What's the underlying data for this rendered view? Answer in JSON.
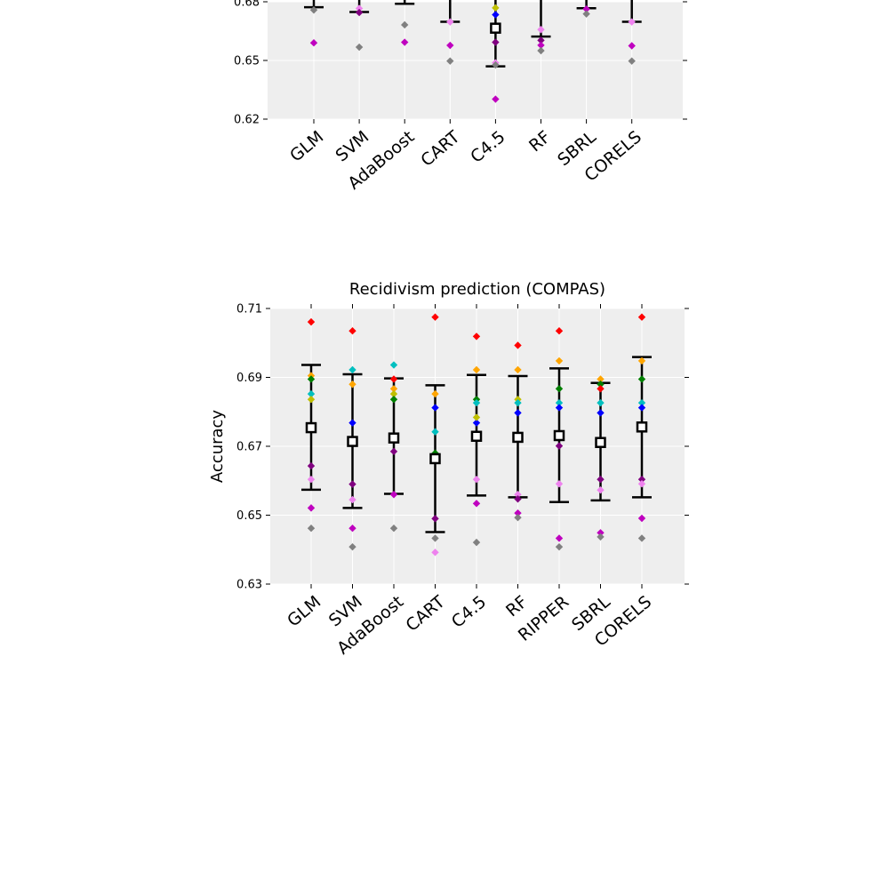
{
  "chart_data": [
    {
      "type": "scatter",
      "title": "",
      "ylabel": "",
      "ylim": [
        0.62,
        0.68
      ],
      "yticks": [
        "0.62",
        "0.65",
        "0.68"
      ],
      "categories": [
        "GLM",
        "SVM",
        "AdaBoost",
        "CART",
        "C4.5",
        "RF",
        "SBRL",
        "CORELS"
      ],
      "grid": true,
      "points": [
        {
          "cat": 0,
          "y": 0.6758,
          "color": "#808080"
        },
        {
          "cat": 0,
          "y": 0.659,
          "color": "#bf00bf"
        },
        {
          "cat": 1,
          "y": 0.6766,
          "color": "#ee82ee"
        },
        {
          "cat": 1,
          "y": 0.6745,
          "color": "#800080"
        },
        {
          "cat": 1,
          "y": 0.6568,
          "color": "#808080"
        },
        {
          "cat": 2,
          "y": 0.6682,
          "color": "#808080"
        },
        {
          "cat": 2,
          "y": 0.6593,
          "color": "#bf00bf"
        },
        {
          "cat": 3,
          "y": 0.6697,
          "color": "#ee82ee"
        },
        {
          "cat": 3,
          "y": 0.6577,
          "color": "#bf00bf"
        },
        {
          "cat": 3,
          "y": 0.6497,
          "color": "#808080"
        },
        {
          "cat": 4,
          "y": 0.6769,
          "color": "#bfbf00"
        },
        {
          "cat": 4,
          "y": 0.6734,
          "color": "#0000ff"
        },
        {
          "cat": 4,
          "y": 0.6593,
          "color": "#800080"
        },
        {
          "cat": 4,
          "y": 0.6488,
          "color": "#ee82ee"
        },
        {
          "cat": 4,
          "y": 0.6477,
          "color": "#808080"
        },
        {
          "cat": 4,
          "y": 0.6302,
          "color": "#bf00bf"
        },
        {
          "cat": 5,
          "y": 0.6658,
          "color": "#ee82ee"
        },
        {
          "cat": 5,
          "y": 0.6603,
          "color": "#800080"
        },
        {
          "cat": 5,
          "y": 0.6578,
          "color": "#bf00bf"
        },
        {
          "cat": 5,
          "y": 0.655,
          "color": "#808080"
        },
        {
          "cat": 6,
          "y": 0.6763,
          "color": "#bf00bf"
        },
        {
          "cat": 6,
          "y": 0.6738,
          "color": "#808080"
        },
        {
          "cat": 7,
          "y": 0.6697,
          "color": "#ee82ee"
        },
        {
          "cat": 7,
          "y": 0.6575,
          "color": "#bf00bf"
        },
        {
          "cat": 7,
          "y": 0.6497,
          "color": "#808080"
        }
      ],
      "means": [
        {
          "cat": 4,
          "y": 0.6665
        }
      ],
      "whiskers": [
        {
          "cat": 0,
          "lo": null,
          "hi": 0.6772
        },
        {
          "cat": 1,
          "lo": null,
          "hi": 0.6748
        },
        {
          "cat": 2,
          "lo": null,
          "hi": 0.679
        },
        {
          "cat": 3,
          "lo": null,
          "hi": 0.6698
        },
        {
          "cat": 4,
          "lo": 0.647,
          "hi": null
        },
        {
          "cat": 5,
          "lo": 0.6622,
          "hi": null
        },
        {
          "cat": 6,
          "lo": null,
          "hi": 0.6767
        },
        {
          "cat": 7,
          "lo": null,
          "hi": 0.6698
        }
      ]
    },
    {
      "type": "scatter",
      "title": "Recidivism prediction (COMPAS)",
      "ylabel": "Accuracy",
      "ylim": [
        0.63,
        0.71
      ],
      "yticks": [
        "0.63",
        "0.65",
        "0.67",
        "0.69",
        "0.71"
      ],
      "categories": [
        "GLM",
        "SVM",
        "AdaBoost",
        "CART",
        "C4.5",
        "RF",
        "RIPPER",
        "SBRL",
        "CORELS"
      ],
      "grid": true,
      "means": [
        {
          "cat": 0,
          "y": 0.6754
        },
        {
          "cat": 1,
          "y": 0.6714
        },
        {
          "cat": 2,
          "y": 0.6724
        },
        {
          "cat": 3,
          "y": 0.6664
        },
        {
          "cat": 4,
          "y": 0.6729
        },
        {
          "cat": 5,
          "y": 0.6726
        },
        {
          "cat": 6,
          "y": 0.6731
        },
        {
          "cat": 7,
          "y": 0.6711
        },
        {
          "cat": 8,
          "y": 0.6756
        }
      ],
      "whiskers": [
        {
          "cat": 0,
          "lo": 0.6574,
          "hi": 0.6936
        },
        {
          "cat": 1,
          "lo": 0.6521,
          "hi": 0.6909
        },
        {
          "cat": 2,
          "lo": 0.6562,
          "hi": 0.6897
        },
        {
          "cat": 3,
          "lo": 0.6451,
          "hi": 0.6877
        },
        {
          "cat": 4,
          "lo": 0.6557,
          "hi": 0.6907
        },
        {
          "cat": 5,
          "lo": 0.6552,
          "hi": 0.6904
        },
        {
          "cat": 6,
          "lo": 0.6538,
          "hi": 0.6926
        },
        {
          "cat": 7,
          "lo": 0.6543,
          "hi": 0.6884
        },
        {
          "cat": 8,
          "lo": 0.6552,
          "hi": 0.6959
        }
      ],
      "points": [
        {
          "cat": 0,
          "y": 0.7061,
          "color": "#ff0000"
        },
        {
          "cat": 0,
          "y": 0.6905,
          "color": "#ffa500"
        },
        {
          "cat": 0,
          "y": 0.6895,
          "color": "#008000"
        },
        {
          "cat": 0,
          "y": 0.6852,
          "color": "#00bfbf"
        },
        {
          "cat": 0,
          "y": 0.6836,
          "color": "#bfbf00"
        },
        {
          "cat": 0,
          "y": 0.6643,
          "color": "#800080"
        },
        {
          "cat": 0,
          "y": 0.6604,
          "color": "#ee82ee"
        },
        {
          "cat": 0,
          "y": 0.6521,
          "color": "#bf00bf"
        },
        {
          "cat": 0,
          "y": 0.6462,
          "color": "#808080"
        },
        {
          "cat": 1,
          "y": 0.7035,
          "color": "#ff0000"
        },
        {
          "cat": 1,
          "y": 0.6922,
          "color": "#00bfbf"
        },
        {
          "cat": 1,
          "y": 0.688,
          "color": "#ffa500"
        },
        {
          "cat": 1,
          "y": 0.6768,
          "color": "#0000ff"
        },
        {
          "cat": 1,
          "y": 0.659,
          "color": "#800080"
        },
        {
          "cat": 1,
          "y": 0.6545,
          "color": "#ee82ee"
        },
        {
          "cat": 1,
          "y": 0.6462,
          "color": "#bf00bf"
        },
        {
          "cat": 1,
          "y": 0.6408,
          "color": "#808080"
        },
        {
          "cat": 2,
          "y": 0.6936,
          "color": "#00bfbf"
        },
        {
          "cat": 2,
          "y": 0.6895,
          "color": "#ff0000"
        },
        {
          "cat": 2,
          "y": 0.6867,
          "color": "#ffa500"
        },
        {
          "cat": 2,
          "y": 0.6852,
          "color": "#bfbf00"
        },
        {
          "cat": 2,
          "y": 0.6836,
          "color": "#008000"
        },
        {
          "cat": 2,
          "y": 0.6685,
          "color": "#800080"
        },
        {
          "cat": 2,
          "y": 0.656,
          "color": "#bf00bf"
        },
        {
          "cat": 2,
          "y": 0.6462,
          "color": "#808080"
        },
        {
          "cat": 3,
          "y": 0.7075,
          "color": "#ff0000"
        },
        {
          "cat": 3,
          "y": 0.6852,
          "color": "#ffa500"
        },
        {
          "cat": 3,
          "y": 0.6812,
          "color": "#0000ff"
        },
        {
          "cat": 3,
          "y": 0.6742,
          "color": "#00bfbf"
        },
        {
          "cat": 3,
          "y": 0.668,
          "color": "#008000"
        },
        {
          "cat": 3,
          "y": 0.649,
          "color": "#800080"
        },
        {
          "cat": 3,
          "y": 0.6433,
          "color": "#808080"
        },
        {
          "cat": 3,
          "y": 0.6392,
          "color": "#ee82ee"
        },
        {
          "cat": 4,
          "y": 0.7019,
          "color": "#ff0000"
        },
        {
          "cat": 4,
          "y": 0.6922,
          "color": "#ffa500"
        },
        {
          "cat": 4,
          "y": 0.6836,
          "color": "#008000"
        },
        {
          "cat": 4,
          "y": 0.6826,
          "color": "#00bfbf"
        },
        {
          "cat": 4,
          "y": 0.6768,
          "color": "#0000ff"
        },
        {
          "cat": 4,
          "y": 0.6784,
          "color": "#bfbf00"
        },
        {
          "cat": 4,
          "y": 0.6604,
          "color": "#ee82ee"
        },
        {
          "cat": 4,
          "y": 0.6534,
          "color": "#bf00bf"
        },
        {
          "cat": 4,
          "y": 0.6421,
          "color": "#808080"
        },
        {
          "cat": 5,
          "y": 0.6993,
          "color": "#ff0000"
        },
        {
          "cat": 5,
          "y": 0.6922,
          "color": "#ffa500"
        },
        {
          "cat": 5,
          "y": 0.6836,
          "color": "#bfbf00"
        },
        {
          "cat": 5,
          "y": 0.6826,
          "color": "#00bfbf"
        },
        {
          "cat": 5,
          "y": 0.6797,
          "color": "#0000ff"
        },
        {
          "cat": 5,
          "y": 0.656,
          "color": "#ee82ee"
        },
        {
          "cat": 5,
          "y": 0.6547,
          "color": "#800080"
        },
        {
          "cat": 5,
          "y": 0.6506,
          "color": "#bf00bf"
        },
        {
          "cat": 5,
          "y": 0.6493,
          "color": "#808080"
        },
        {
          "cat": 6,
          "y": 0.7035,
          "color": "#ff0000"
        },
        {
          "cat": 6,
          "y": 0.6948,
          "color": "#ffa500"
        },
        {
          "cat": 6,
          "y": 0.6867,
          "color": "#008000"
        },
        {
          "cat": 6,
          "y": 0.6826,
          "color": "#00bfbf"
        },
        {
          "cat": 6,
          "y": 0.6812,
          "color": "#0000ff"
        },
        {
          "cat": 6,
          "y": 0.6701,
          "color": "#800080"
        },
        {
          "cat": 6,
          "y": 0.6591,
          "color": "#ee82ee"
        },
        {
          "cat": 6,
          "y": 0.6433,
          "color": "#bf00bf"
        },
        {
          "cat": 6,
          "y": 0.6408,
          "color": "#808080"
        },
        {
          "cat": 7,
          "y": 0.6895,
          "color": "#ffa500"
        },
        {
          "cat": 7,
          "y": 0.688,
          "color": "#008000"
        },
        {
          "cat": 7,
          "y": 0.6867,
          "color": "#ff0000"
        },
        {
          "cat": 7,
          "y": 0.6826,
          "color": "#00bfbf"
        },
        {
          "cat": 7,
          "y": 0.6797,
          "color": "#0000ff"
        },
        {
          "cat": 7,
          "y": 0.6604,
          "color": "#800080"
        },
        {
          "cat": 7,
          "y": 0.6573,
          "color": "#ee82ee"
        },
        {
          "cat": 7,
          "y": 0.6449,
          "color": "#bf00bf"
        },
        {
          "cat": 7,
          "y": 0.6437,
          "color": "#808080"
        },
        {
          "cat": 8,
          "y": 0.7075,
          "color": "#ff0000"
        },
        {
          "cat": 8,
          "y": 0.6948,
          "color": "#ffa500"
        },
        {
          "cat": 8,
          "y": 0.6895,
          "color": "#008000"
        },
        {
          "cat": 8,
          "y": 0.6826,
          "color": "#00bfbf"
        },
        {
          "cat": 8,
          "y": 0.6812,
          "color": "#0000ff"
        },
        {
          "cat": 8,
          "y": 0.6604,
          "color": "#800080"
        },
        {
          "cat": 8,
          "y": 0.6591,
          "color": "#ee82ee"
        },
        {
          "cat": 8,
          "y": 0.6491,
          "color": "#bf00bf"
        },
        {
          "cat": 8,
          "y": 0.6433,
          "color": "#808080"
        }
      ]
    }
  ]
}
